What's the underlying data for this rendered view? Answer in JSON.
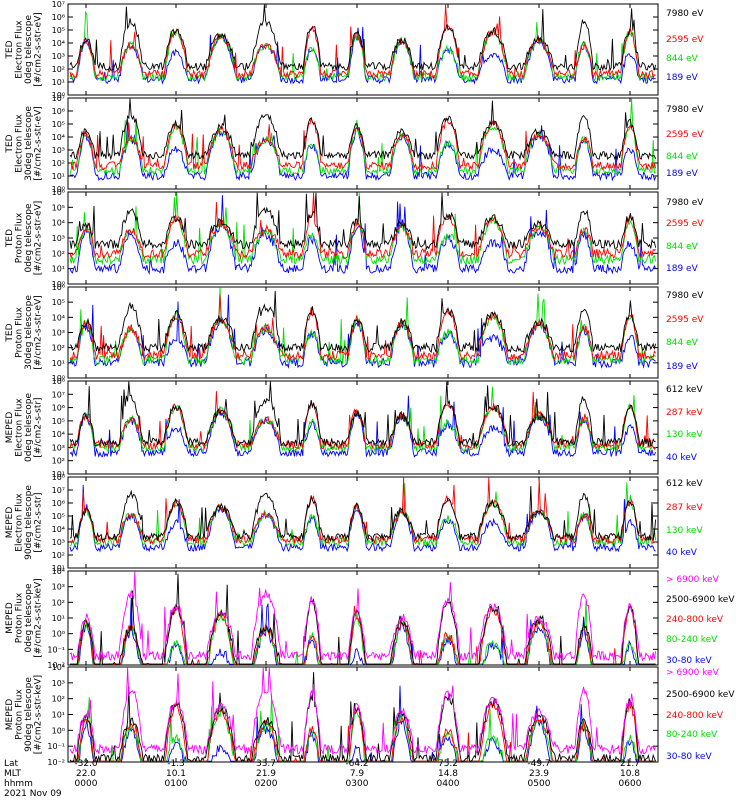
{
  "chart_data": {
    "type": "line",
    "date_label": "2021 Nov 09",
    "x_axis": {
      "row_labels": [
        "Lat",
        "MLT",
        "hhmm"
      ],
      "ticks": [
        {
          "lat": "-32.0",
          "mlt": "22.0",
          "hhmm": "0000"
        },
        {
          "lat": "-1.3",
          "mlt": "10.1",
          "hhmm": "0100"
        },
        {
          "lat": "33.7",
          "mlt": "21.9",
          "hhmm": "0200"
        },
        {
          "lat": "-64.2",
          "mlt": "7.9",
          "hhmm": "0300"
        },
        {
          "lat": "75.2",
          "mlt": "14.8",
          "hhmm": "0400"
        },
        {
          "lat": "-49.7",
          "mlt": "23.9",
          "hhmm": "0500"
        },
        {
          "lat": "21.7",
          "mlt": "10.8",
          "hhmm": "0600"
        }
      ]
    },
    "panels": [
      {
        "ylabel": [
          "TED",
          "Electron Flux",
          "0deg telescope",
          "[#/cm2-s-str-eV]"
        ],
        "ymin_exp": 0,
        "ymax_exp": 7,
        "legend": [
          {
            "name": "7980 eV",
            "color": "#000000"
          },
          {
            "name": "2595 eV",
            "color": "#ff0000"
          },
          {
            "name": "844 eV",
            "color": "#00dd00"
          },
          {
            "name": "189 eV",
            "color": "#0000ff"
          }
        ]
      },
      {
        "ylabel": [
          "TED",
          "Electron Flux",
          "30deg telescope",
          "[#/cm2-s-str-eV]"
        ],
        "ymin_exp": 0,
        "ymax_exp": 7,
        "legend": [
          {
            "name": "7980 eV",
            "color": "#000000"
          },
          {
            "name": "2595 eV",
            "color": "#ff0000"
          },
          {
            "name": "844 eV",
            "color": "#00dd00"
          },
          {
            "name": "189 eV",
            "color": "#0000ff"
          }
        ]
      },
      {
        "ylabel": [
          "TED",
          "Proton Flux",
          "0deg telescope",
          "[#/cm2-s-str-eV]"
        ],
        "ymin_exp": 0,
        "ymax_exp": 6,
        "legend": [
          {
            "name": "7980 eV",
            "color": "#000000"
          },
          {
            "name": "2595 eV",
            "color": "#ff0000"
          },
          {
            "name": "844 eV",
            "color": "#00dd00"
          },
          {
            "name": "189 eV",
            "color": "#0000ff"
          }
        ]
      },
      {
        "ylabel": [
          "TED",
          "Proton Flux",
          "30deg telescope",
          "[#/cm2-s-str-eV]"
        ],
        "ymin_exp": 0,
        "ymax_exp": 6,
        "legend": [
          {
            "name": "7980 eV",
            "color": "#000000"
          },
          {
            "name": "2595 eV",
            "color": "#ff0000"
          },
          {
            "name": "844 eV",
            "color": "#00dd00"
          },
          {
            "name": "189 eV",
            "color": "#0000ff"
          }
        ]
      },
      {
        "ylabel": [
          "MEPED",
          "Electron Flux",
          "0deg telescope",
          "[#/cm2-s-str]"
        ],
        "ymin_exp": 1,
        "ymax_exp": 8,
        "legend": [
          {
            "name": "612 keV",
            "color": "#000000"
          },
          {
            "name": "287 keV",
            "color": "#ff0000"
          },
          {
            "name": "130 keV",
            "color": "#00dd00"
          },
          {
            "name": "40 keV",
            "color": "#0000ff"
          }
        ]
      },
      {
        "ylabel": [
          "MEPED",
          "Electron Flux",
          "90deg telescope",
          "[#/cm2-s-str]"
        ],
        "ymin_exp": 1,
        "ymax_exp": 8,
        "legend": [
          {
            "name": "612 keV",
            "color": "#000000"
          },
          {
            "name": "287 keV",
            "color": "#ff0000"
          },
          {
            "name": "130 keV",
            "color": "#00dd00"
          },
          {
            "name": "40 keV",
            "color": "#0000ff"
          }
        ]
      },
      {
        "ylabel": [
          "MEPED",
          "Proton Flux",
          "0deg telescope",
          "[#/cm2-s-str-keV]"
        ],
        "ymin_exp": -2,
        "ymax_exp": 4,
        "legend": [
          {
            "name": "> 6900 keV",
            "color": "#ff00ff"
          },
          {
            "name": "2500-6900 keV",
            "color": "#000000"
          },
          {
            "name": "240-800 keV",
            "color": "#ff0000"
          },
          {
            "name": "80-240 keV",
            "color": "#00dd00"
          },
          {
            "name": "30-80 keV",
            "color": "#0000ff"
          }
        ]
      },
      {
        "ylabel": [
          "MEPED",
          "Proton Flux",
          "90deg telescope",
          "[#/cm2-s-str-keV]"
        ],
        "ymin_exp": -2,
        "ymax_exp": 4,
        "legend": [
          {
            "name": "> 6900 keV",
            "color": "#ff00ff"
          },
          {
            "name": "2500-6900 keV",
            "color": "#000000"
          },
          {
            "name": "240-800 keV",
            "color": "#ff0000"
          },
          {
            "name": "80-240 keV",
            "color": "#00dd00"
          },
          {
            "name": "30-80 keV",
            "color": "#0000ff"
          }
        ]
      }
    ]
  }
}
